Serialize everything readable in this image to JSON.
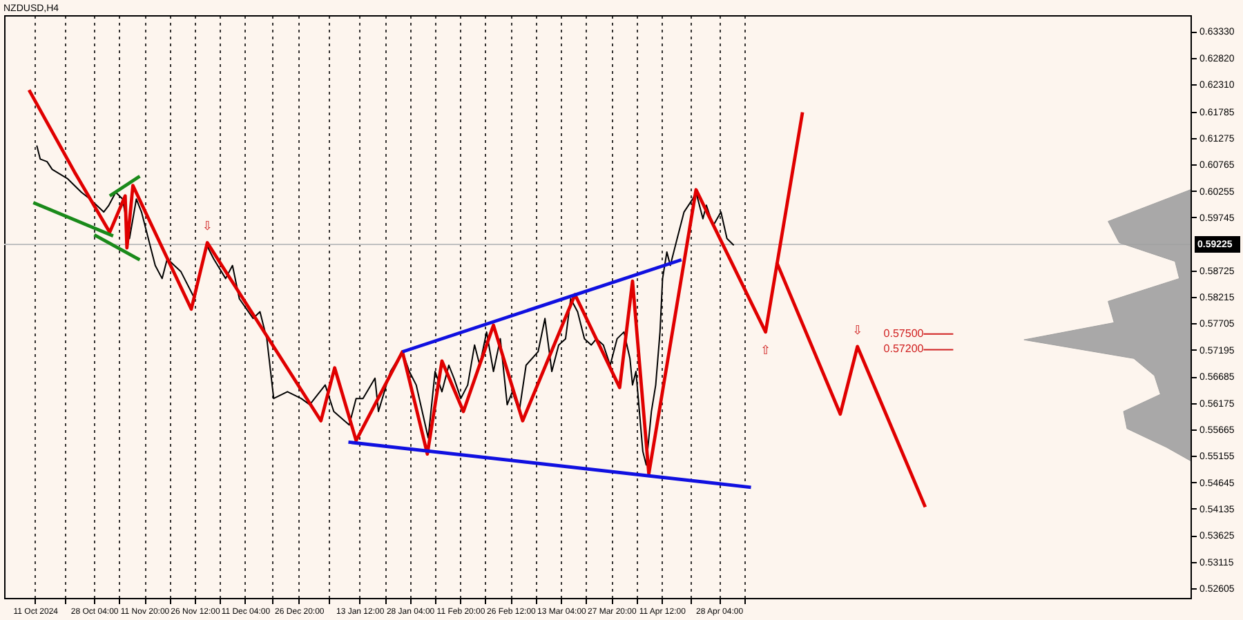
{
  "chart_data": {
    "type": "line",
    "title": "NZDUSD,H4",
    "xlim": [
      "2024-10-02",
      "2025-09-12T12:00"
    ],
    "ylim": [
      0.5242,
      0.6364
    ],
    "xticks": [
      {
        "value": "2024-10-11",
        "label": "11 Oct 2024"
      },
      {
        "value": "2024-10-19T14:00",
        "label": null
      },
      {
        "value": "2024-10-28T04:00",
        "label": "28 Oct 04:00"
      },
      {
        "value": "2024-11-04T12:00",
        "label": null
      },
      {
        "value": "2024-11-11T20:00",
        "label": "11 Nov 20:00"
      },
      {
        "value": "2024-11-19T04:00",
        "label": null
      },
      {
        "value": "2024-11-26T12:00",
        "label": "26 Nov 12:00"
      },
      {
        "value": "2024-12-03T20:00",
        "label": null
      },
      {
        "value": "2024-12-11T04:00",
        "label": "11 Dec 04:00"
      },
      {
        "value": "2024-12-19",
        "label": null
      },
      {
        "value": "2024-12-26T20:00",
        "label": "26 Dec 20:00"
      },
      {
        "value": "2025-01-04T16:00",
        "label": null
      },
      {
        "value": "2025-01-13T12:00",
        "label": "13 Jan 12:00"
      },
      {
        "value": "2025-01-20T20:00",
        "label": null
      },
      {
        "value": "2025-01-28T04:00",
        "label": "28 Jan 04:00"
      },
      {
        "value": "2025-02-04T12:00",
        "label": null
      },
      {
        "value": "2025-02-11T20:00",
        "label": "11 Feb 20:00"
      },
      {
        "value": "2025-02-19T04:00",
        "label": null
      },
      {
        "value": "2025-02-26T12:00",
        "label": "26 Feb 12:00"
      },
      {
        "value": "2025-03-05T20:00",
        "label": null
      },
      {
        "value": "2025-03-13T04:00",
        "label": "13 Mar 04:00"
      },
      {
        "value": "2025-03-20T12:00",
        "label": null
      },
      {
        "value": "2025-03-27T20:00",
        "label": "27 Mar 20:00"
      },
      {
        "value": "2025-04-04T04:00",
        "label": null
      },
      {
        "value": "2025-04-11T12:00",
        "label": "11 Apr 12:00"
      },
      {
        "value": "2025-04-19T20:00",
        "label": null
      },
      {
        "value": "2025-04-28T04:00",
        "label": "28 Apr 04:00"
      },
      {
        "value": "2025-05-05T12:00",
        "label": null
      }
    ],
    "yticks": [
      {
        "value": 0.6333,
        "label": "0.63330"
      },
      {
        "value": 0.6282,
        "label": "0.62820"
      },
      {
        "value": 0.6231,
        "label": "0.62310"
      },
      {
        "value": 0.61785,
        "label": "0.61785"
      },
      {
        "value": 0.61275,
        "label": "0.61275"
      },
      {
        "value": 0.60765,
        "label": "0.60765"
      },
      {
        "value": 0.60255,
        "label": "0.60255"
      },
      {
        "value": 0.59745,
        "label": "0.59745"
      },
      {
        "value": 0.58725,
        "label": "0.58725"
      },
      {
        "value": 0.58215,
        "label": "0.58215"
      },
      {
        "value": 0.57705,
        "label": "0.57705"
      },
      {
        "value": 0.57195,
        "label": "0.57195"
      },
      {
        "value": 0.56685,
        "label": "0.56685"
      },
      {
        "value": 0.56175,
        "label": "0.56175"
      },
      {
        "value": 0.55665,
        "label": "0.55665"
      },
      {
        "value": 0.55155,
        "label": "0.55155"
      },
      {
        "value": 0.54645,
        "label": "0.54645"
      },
      {
        "value": 0.54135,
        "label": "0.54135"
      },
      {
        "value": 0.53625,
        "label": "0.53625"
      },
      {
        "value": 0.53115,
        "label": "0.53115"
      },
      {
        "value": 0.52605,
        "label": "0.52605"
      }
    ],
    "grid": "x",
    "marker": "none",
    "line_style": "solid",
    "series": [
      {
        "type": "line",
        "color": "#000000",
        "x": [
          "2024-10-11T12:00",
          "2024-10-12T12:00",
          "2024-10-14T12:00",
          "2024-10-16",
          "2024-10-20T12:00",
          "2024-10-24T12:00",
          "2024-10-27",
          "2024-10-31",
          "2024-11-01T12:00",
          "2024-11-03T12:00",
          "2024-11-05T12:00",
          "2024-11-07T12:00",
          "2024-11-09T12:00",
          "2024-11-11",
          "2024-11-15",
          "2024-11-17",
          "2024-11-18T12:00",
          "2024-11-22T12:00",
          "2024-11-26T12:00",
          "2024-11-28T12:00",
          "2024-11-30",
          "2024-12-02",
          "2024-12-05T12:00",
          "2024-12-07T12:00",
          "2024-12-09T12:00",
          "2024-12-13T12:00",
          "2024-12-15T12:00",
          "2024-12-17T12:00",
          "2024-12-19T12:00",
          "2024-12-23T12:00",
          "2024-12-27T12:00",
          "2024-12-30",
          "2025-01-03T12:00",
          "2025-01-06",
          "2025-01-10T12:00",
          "2025-01-12T12:00",
          "2025-01-14T12:00",
          "2025-01-18",
          "2025-01-19",
          "2025-01-22T12:00",
          "2025-01-26",
          "2025-01-28",
          "2025-01-30",
          "2025-02-02T12:00",
          "2025-02-04T12:00",
          "2025-02-06T12:00",
          "2025-02-08T12:00",
          "2025-02-10",
          "2025-02-12",
          "2025-02-14",
          "2025-02-16",
          "2025-02-17T12:00",
          "2025-02-19T12:00",
          "2025-02-21T12:00",
          "2025-02-23T12:00",
          "2025-02-25T12:00",
          "2025-02-27",
          "2025-03-01",
          "2025-03-03",
          "2025-03-06T12:00",
          "2025-03-08T12:00",
          "2025-03-10T12:00",
          "2025-03-12T12:00",
          "2025-03-14T12:00",
          "2025-03-16",
          "2025-03-18",
          "2025-03-20",
          "2025-03-22",
          "2025-03-23T12:00",
          "2025-03-25T12:00",
          "2025-03-27T12:00",
          "2025-03-29T12:00",
          "2025-03-31T12:00",
          "2025-04-02T06:00",
          "2025-04-03",
          "2025-04-04",
          "2025-04-05",
          "2025-04-06",
          "2025-04-07",
          "2025-04-07T18:00",
          "2025-04-08T12:00",
          "2025-04-09T18:00",
          "2025-04-11",
          "2025-04-11T18:00",
          "2025-04-13",
          "2025-04-14",
          "2025-04-16",
          "2025-04-18",
          "2025-04-20T12:00",
          "2025-04-21T12:00",
          "2025-04-23T12:00",
          "2025-04-24T12:00",
          "2025-04-26T12:00",
          "2025-04-28T18:00",
          "2025-04-30T12:00",
          "2025-05-02T12:00"
        ],
        "values": [
          0.6113,
          0.6087,
          0.6082,
          0.6067,
          0.6049,
          0.6023,
          0.601,
          0.5985,
          0.5998,
          0.6023,
          0.601,
          0.5934,
          0.601,
          0.5985,
          0.5882,
          0.5857,
          0.5895,
          0.587,
          0.5818,
          0.5882,
          0.5921,
          0.5895,
          0.5857,
          0.5882,
          0.5818,
          0.578,
          0.5793,
          0.5741,
          0.5626,
          0.5639,
          0.5626,
          0.5614,
          0.5652,
          0.5601,
          0.5575,
          0.5626,
          0.5626,
          0.5665,
          0.5601,
          0.5678,
          0.5716,
          0.5678,
          0.5652,
          0.555,
          0.5678,
          0.5639,
          0.569,
          0.5665,
          0.5626,
          0.5652,
          0.5729,
          0.569,
          0.5754,
          0.5678,
          0.5741,
          0.5614,
          0.5639,
          0.5601,
          0.569,
          0.5716,
          0.578,
          0.5678,
          0.5729,
          0.5741,
          0.5818,
          0.5793,
          0.5741,
          0.5729,
          0.5741,
          0.5729,
          0.569,
          0.5741,
          0.5754,
          0.5703,
          0.5652,
          0.5678,
          0.5601,
          0.5524,
          0.5498,
          0.555,
          0.5601,
          0.5652,
          0.5754,
          0.5857,
          0.5908,
          0.5882,
          0.5934,
          0.5985,
          0.601,
          0.6023,
          0.5972,
          0.5998,
          0.5959,
          0.5985,
          0.5934,
          0.5921
        ]
      },
      {
        "type": "line",
        "color": "#e00000",
        "x": [
          "2024-10-09T06:00",
          "2024-10-22T12:00",
          "2024-11-01T18:00",
          "2024-11-06T06:00",
          "2024-11-06T18:00",
          "2024-11-08T12:00",
          "2024-11-25T12:00",
          "2024-11-30T04:00",
          "2025-01-02T06:00",
          "2025-01-06T06:00",
          "2025-01-12T12:00",
          "2025-01-26",
          "2025-02-02T06:00",
          "2025-02-06T12:00",
          "2025-02-12T18:00",
          "2025-02-21T12:00",
          "2025-03-02",
          "2025-03-17T06:00",
          "2025-03-30T06:00",
          "2025-04-03",
          "2025-04-07T18:00",
          "2025-04-21T12:00",
          "2025-05-11T18:00",
          "2025-05-22T12:00"
        ],
        "values": [
          0.622,
          0.6062,
          0.5946,
          0.6016,
          0.5916,
          0.6036,
          0.5798,
          0.5926,
          0.5583,
          0.5685,
          0.5545,
          0.5716,
          0.5519,
          0.5698,
          0.5601,
          0.5767,
          0.5583,
          0.5826,
          0.5647,
          0.5852,
          0.5481,
          0.6028,
          0.5754,
          0.6177
        ]
      },
      {
        "type": "line",
        "color": "#e00000",
        "x": [
          "2025-05-15",
          "2025-06-02T12:00",
          "2025-06-07T12:00",
          "2025-06-27T06:00"
        ],
        "values": [
          0.5888,
          0.5596,
          0.5726,
          0.5417
        ]
      },
      {
        "type": "line",
        "color": "#1010e0",
        "x": [
          "2025-01-26",
          "2025-04-17T06:00"
        ],
        "values": [
          0.5716,
          0.5893
        ]
      },
      {
        "type": "line",
        "color": "#1010e0",
        "x": [
          "2025-01-10T06:00",
          "2025-05-07T12:00"
        ],
        "values": [
          0.5542,
          0.5455
        ]
      },
      {
        "type": "line",
        "color": "#1a8a1a",
        "x": [
          "2024-10-10T12:00",
          "2024-11-02T18:00"
        ],
        "values": [
          0.6003,
          0.5939
        ]
      },
      {
        "type": "line",
        "color": "#1a8a1a",
        "x": [
          "2024-10-28T06:00",
          "2024-11-10T12:00"
        ],
        "values": [
          0.5941,
          0.5893
        ]
      },
      {
        "type": "line",
        "color": "#1a8a1a",
        "x": [
          "2024-11-01T18:00",
          "2024-11-10T12:00"
        ],
        "values": [
          0.6016,
          0.6054
        ]
      },
      {
        "type": "area",
        "color": "#a0a0a0",
        "x": [
          "2025-09-12T12:00",
          "2025-08-19T12:00",
          "2025-08-22T18:00",
          "2025-09-08",
          "2025-09-09T06:00",
          "2025-08-19T12:00",
          "2025-08-21T06:00",
          "2025-07-26",
          "2025-08-27",
          "2025-09-02",
          "2025-09-03T18:00",
          "2025-08-24",
          "2025-08-25",
          "2025-09-05T12:00",
          "2025-09-12T12:00"
        ],
        "values": [
          0.6028,
          0.5967,
          0.5926,
          0.589,
          0.5857,
          0.5813,
          0.5772,
          0.5739,
          0.5703,
          0.567,
          0.5634,
          0.5601,
          0.5568,
          0.5532,
          0.5506
        ]
      }
    ],
    "ref_lines": [
      {
        "axis": "y",
        "value": 0.59225,
        "label": "0.59225",
        "color": "#c0c0c0"
      },
      {
        "axis": "y",
        "value": 0.575,
        "label": "0.57500",
        "color": "#d02020"
      },
      {
        "axis": "y",
        "value": 0.572,
        "label": "0.57200",
        "color": "#d02020"
      }
    ],
    "annotations": [
      {
        "text": "⇩",
        "x": "2024-11-30T04:00",
        "y": 0.5926
      },
      {
        "text": "⇧",
        "x": "2025-05-11T18:00",
        "y": 0.5754
      },
      {
        "text": "⇩",
        "x": "2025-06-07T12:00",
        "y": 0.5726
      }
    ]
  }
}
